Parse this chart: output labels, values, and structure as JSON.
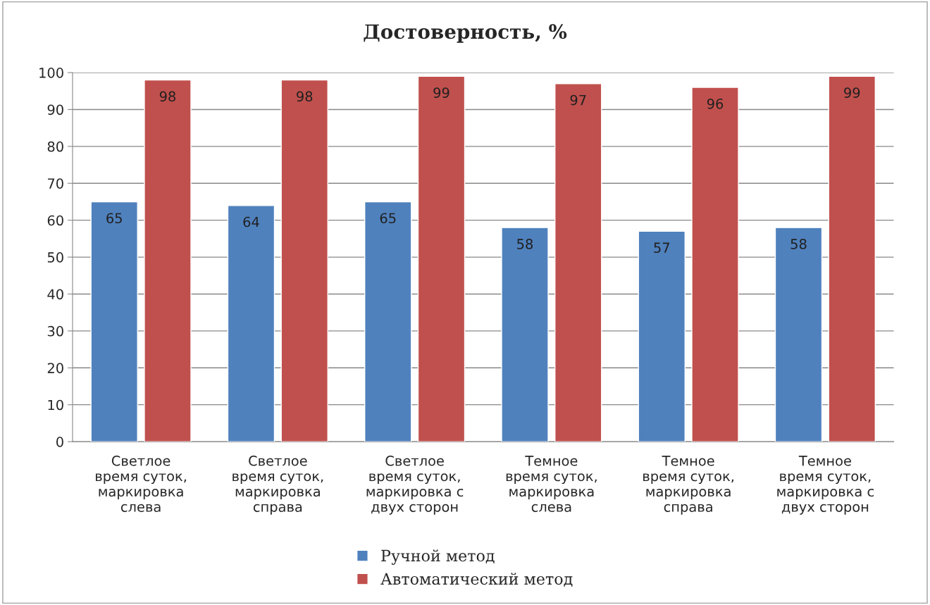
{
  "chart_data": {
    "type": "bar",
    "title": "Достоверность, %",
    "categories": [
      "Светлое\nвремя суток,\nмаркировка\nслева",
      "Светлое\nвремя суток,\nмаркировка\nсправа",
      "Светлое\nвремя суток,\nмаркировка с\nдвух сторон",
      "Темное\nвремя суток,\nмаркировка\nслева",
      "Темное\nвремя суток,\nмаркировка\nсправа",
      "Темное\nвремя суток,\nмаркировка с\nдвух сторон"
    ],
    "series": [
      {
        "name": "Ручной метод",
        "color": "#4f81bd",
        "values": [
          65,
          64,
          65,
          58,
          57,
          58
        ]
      },
      {
        "name": "Автоматический метод",
        "color": "#c0504d",
        "values": [
          98,
          98,
          99,
          97,
          96,
          99
        ]
      }
    ],
    "ylim": [
      0,
      100
    ],
    "yticks": [
      0,
      10,
      20,
      30,
      40,
      50,
      60,
      70,
      80,
      90,
      100
    ],
    "grid": "y",
    "legend": "bottom",
    "data_labels": true
  }
}
